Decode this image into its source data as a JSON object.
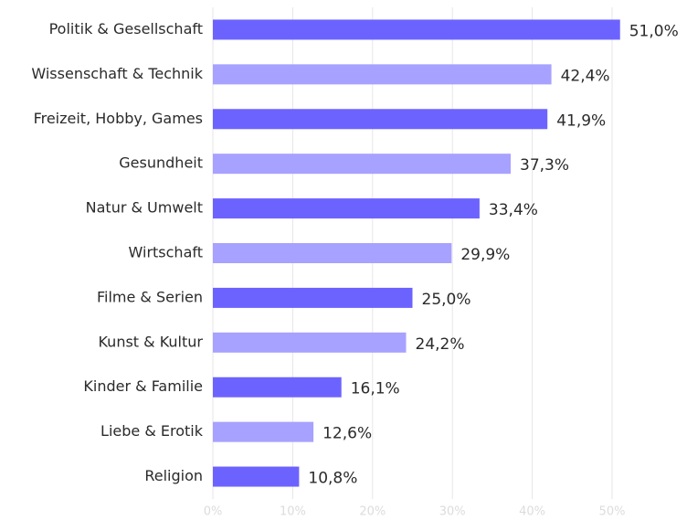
{
  "chart_data": {
    "type": "barh",
    "categories": [
      "Politik & Gesellschaft",
      "Wissenschaft & Technik",
      "Freizeit, Hobby, Games",
      "Gesundheit",
      "Natur & Umwelt",
      "Wirtschaft",
      "Filme & Serien",
      "Kunst & Kultur",
      "Kinder & Familie",
      "Liebe & Erotik",
      "Religion"
    ],
    "values": [
      51.0,
      42.4,
      41.9,
      37.3,
      33.4,
      29.9,
      25.0,
      24.2,
      16.1,
      12.6,
      10.8
    ],
    "value_labels": [
      "51,0%",
      "42,4%",
      "41,9%",
      "37,3%",
      "33,4%",
      "29,9%",
      "25,0%",
      "24,2%",
      "16,1%",
      "12,6%",
      "10,8%"
    ],
    "colors": [
      "#6c63ff",
      "#a7a1ff",
      "#6c63ff",
      "#a7a1ff",
      "#6c63ff",
      "#a7a1ff",
      "#6c63ff",
      "#a7a1ff",
      "#6c63ff",
      "#a7a1ff",
      "#6c63ff"
    ],
    "xlim": [
      0,
      50
    ],
    "xticks": [
      {
        "value": 0,
        "label": "0%"
      },
      {
        "value": 10,
        "label": "10%"
      },
      {
        "value": 20,
        "label": "20%"
      },
      {
        "value": 30,
        "label": "30%"
      },
      {
        "value": 40,
        "label": "40%"
      },
      {
        "value": 50,
        "label": "50%"
      }
    ],
    "grid": true
  }
}
